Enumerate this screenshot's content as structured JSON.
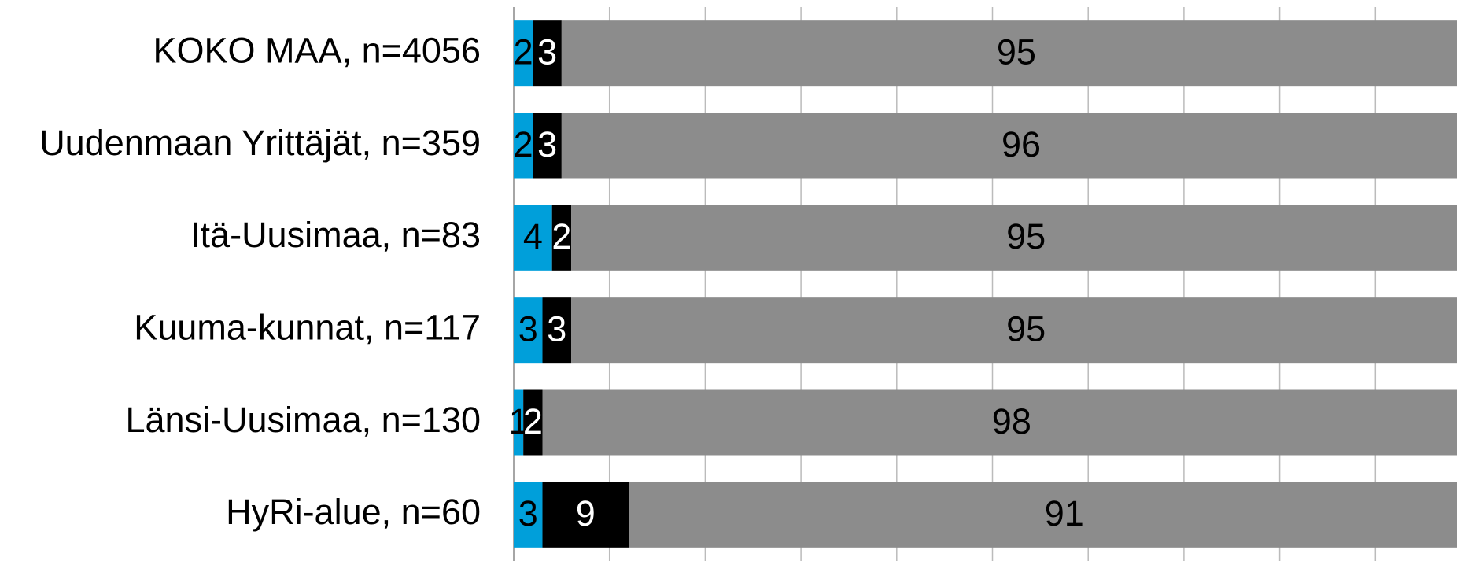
{
  "chart_data": {
    "type": "stacked_barh",
    "categories": [
      "KOKO MAA, n=4056",
      "Uudenmaan Yrittäjät, n=359",
      "Itä-Uusimaa, n=83",
      "Kuuma-kunnat, n=117",
      "Länsi-Uusimaa, n=130",
      "HyRi-alue, n=60"
    ],
    "series": [
      {
        "color": "#009fda",
        "label_color": "#000000",
        "values": [
          2,
          2,
          4,
          3,
          1,
          3
        ]
      },
      {
        "color": "#000000",
        "label_color": "#ffffff",
        "values": [
          3,
          3,
          2,
          3,
          2,
          9
        ]
      },
      {
        "color": "#8c8c8c",
        "label_color": "#000000",
        "values": [
          95,
          96,
          95,
          95,
          98,
          91
        ]
      }
    ],
    "xlim": [
      0,
      100
    ],
    "xticks": [
      0,
      10,
      20,
      30,
      40,
      50,
      60,
      70,
      80,
      90,
      100
    ],
    "grid": true
  }
}
